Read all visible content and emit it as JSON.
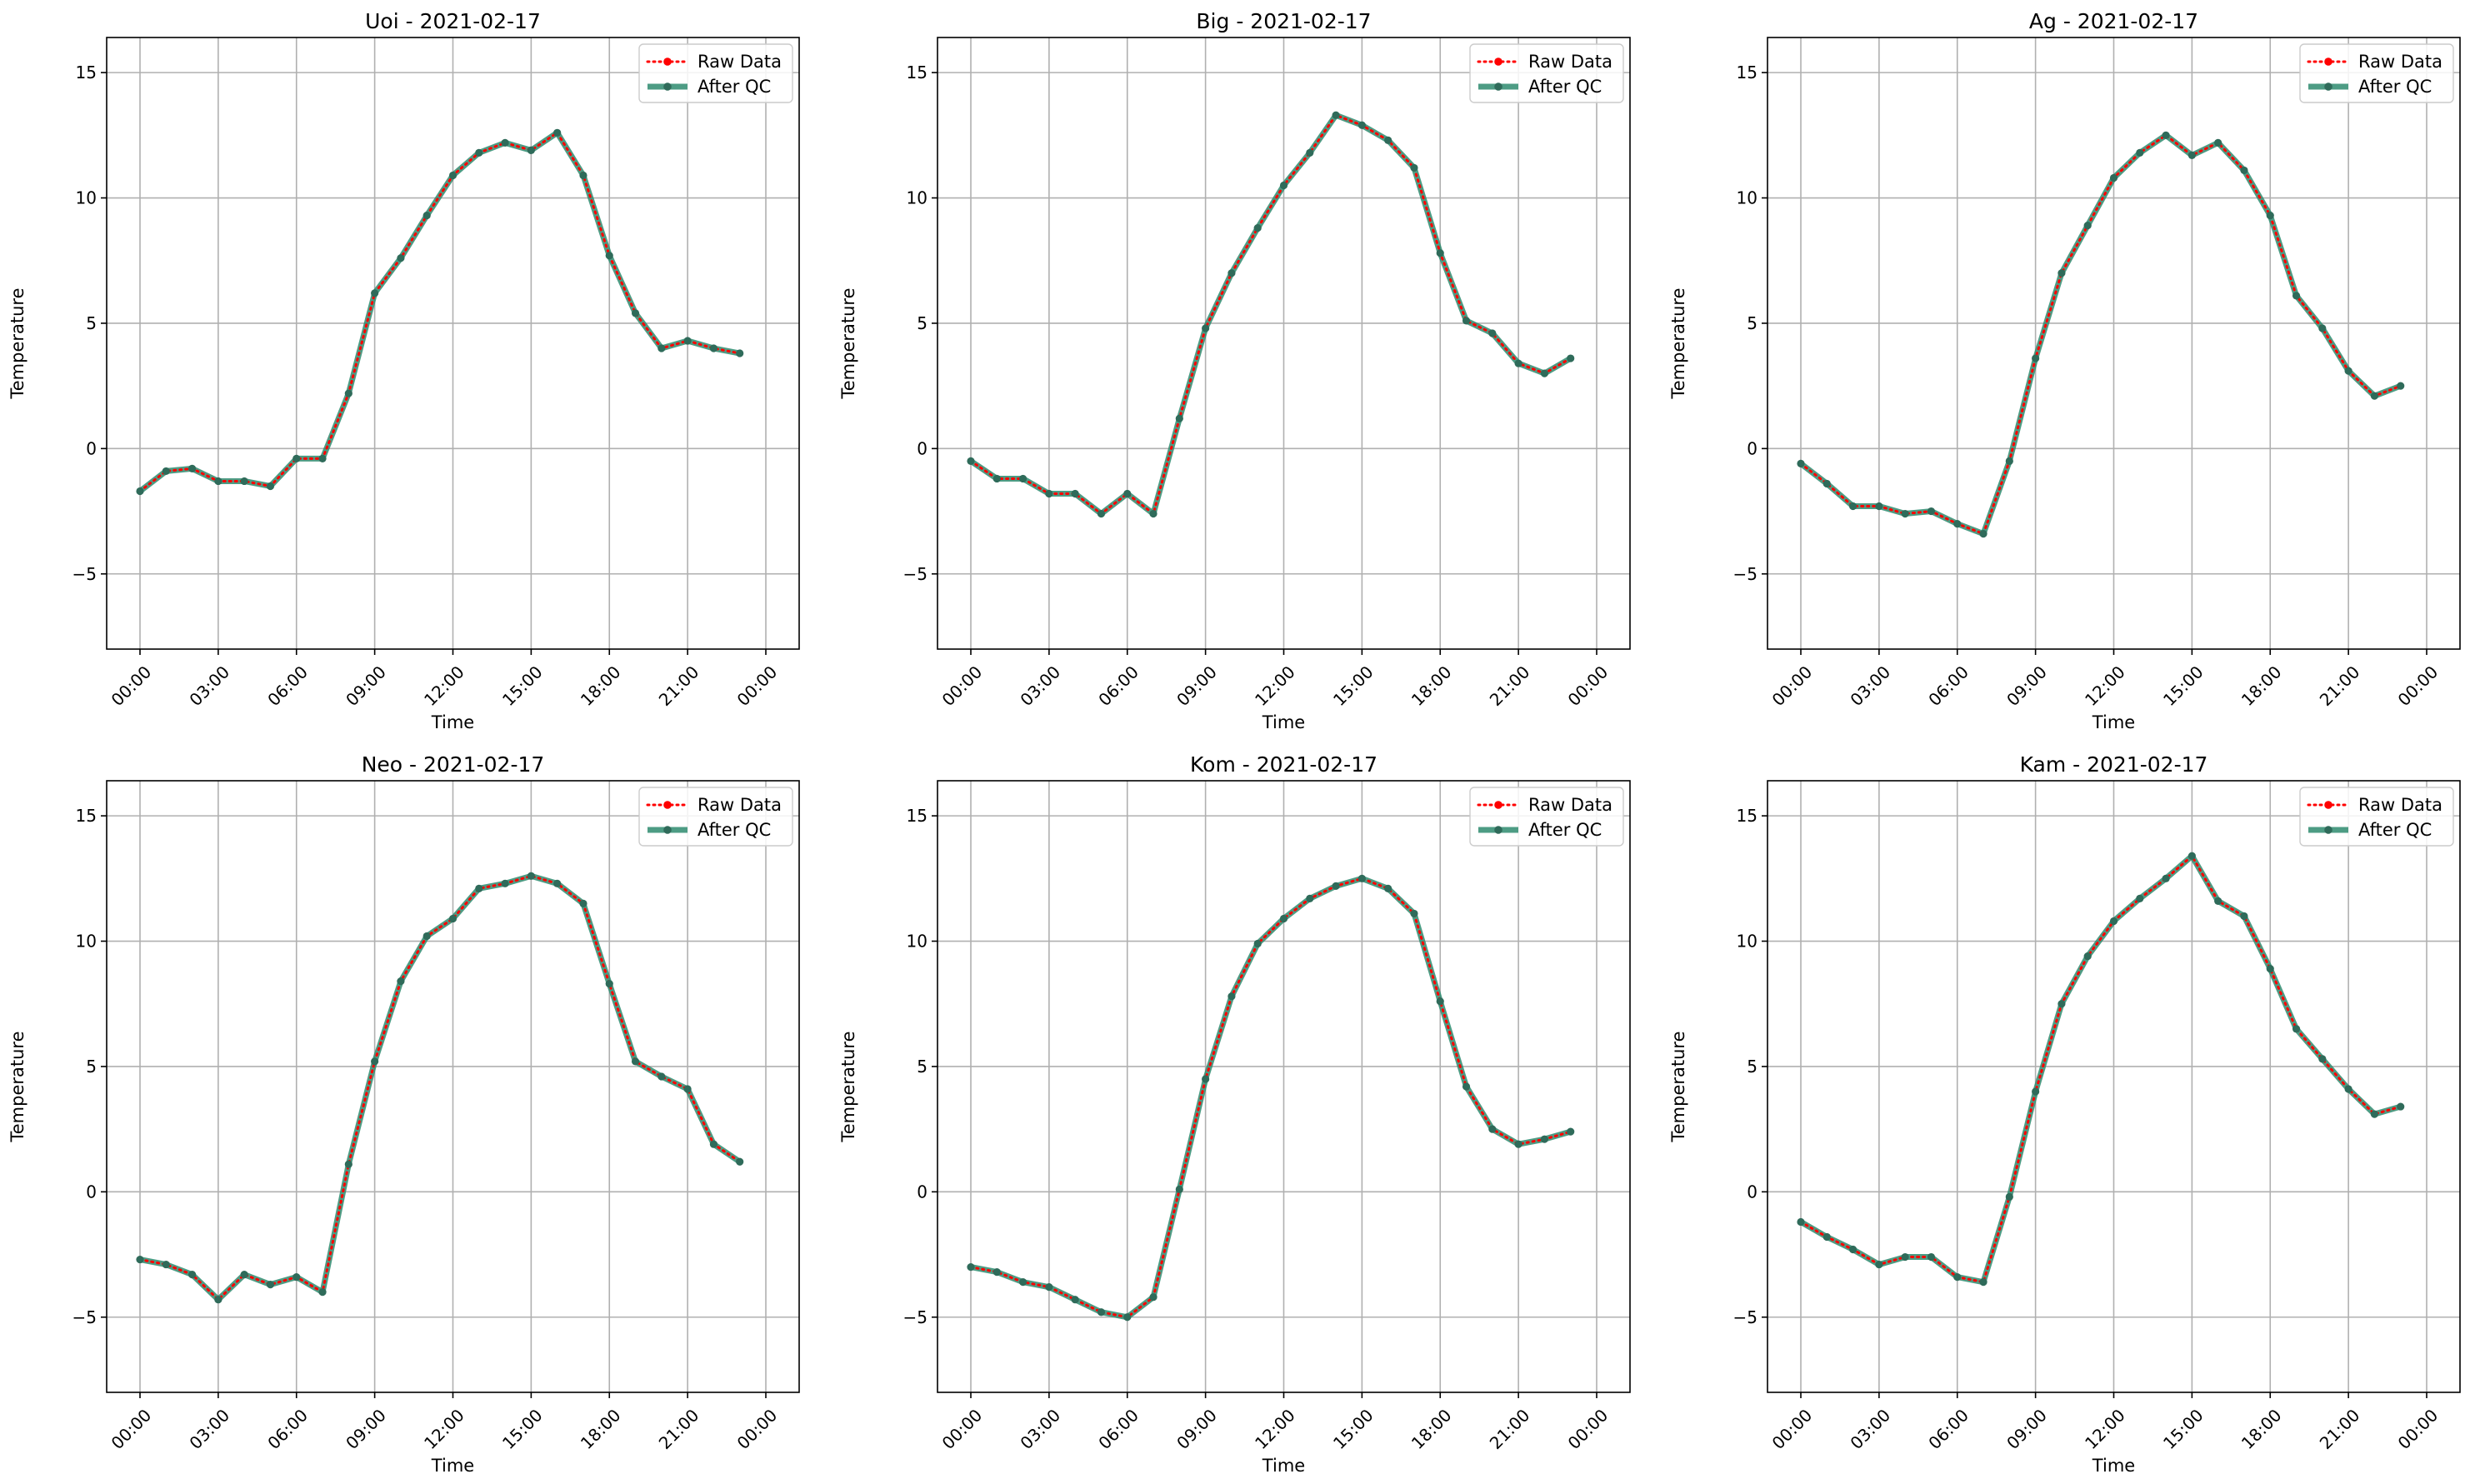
{
  "legend": {
    "raw": "Raw Data",
    "qc": "After QC"
  },
  "colors": {
    "raw": "#ff0000",
    "qc": "#2e8b6e",
    "marker": "#2f6b5a"
  },
  "chart_data": [
    {
      "type": "line",
      "title": "Uoi - 2021-02-17",
      "xlabel": "Time",
      "ylabel": "Temperature",
      "ylim": [
        -8,
        16.4
      ],
      "x": [
        "00:00",
        "01:00",
        "02:00",
        "03:00",
        "04:00",
        "05:00",
        "06:00",
        "07:00",
        "08:00",
        "09:00",
        "10:00",
        "11:00",
        "12:00",
        "13:00",
        "14:00",
        "15:00",
        "16:00",
        "17:00",
        "18:00",
        "19:00",
        "20:00",
        "21:00",
        "22:00",
        "23:00"
      ],
      "yticks": [
        -5,
        0,
        5,
        10,
        15
      ],
      "xticks": [
        "00:00",
        "03:00",
        "06:00",
        "09:00",
        "12:00",
        "15:00",
        "18:00",
        "21:00",
        "00:00"
      ],
      "grid": true,
      "legend_position": "top-right",
      "series": [
        {
          "name": "Raw Data",
          "values": [
            -1.7,
            -0.9,
            -0.8,
            -1.3,
            -1.3,
            -1.5,
            -0.4,
            -0.4,
            2.2,
            6.2,
            7.6,
            9.3,
            10.9,
            11.8,
            12.2,
            11.9,
            12.6,
            10.9,
            7.7,
            5.4,
            4.0,
            4.3,
            4.0,
            3.8
          ]
        },
        {
          "name": "After QC",
          "values": [
            -1.7,
            -0.9,
            -0.8,
            -1.3,
            -1.3,
            -1.5,
            -0.4,
            -0.4,
            2.2,
            6.2,
            7.6,
            9.3,
            10.9,
            11.8,
            12.2,
            11.9,
            12.6,
            10.9,
            7.7,
            5.4,
            4.0,
            4.3,
            4.0,
            3.8
          ]
        }
      ]
    },
    {
      "type": "line",
      "title": "Big - 2021-02-17",
      "xlabel": "Time",
      "ylabel": "Temperature",
      "ylim": [
        -8,
        16.4
      ],
      "x": [
        "00:00",
        "01:00",
        "02:00",
        "03:00",
        "04:00",
        "05:00",
        "06:00",
        "07:00",
        "08:00",
        "09:00",
        "10:00",
        "11:00",
        "12:00",
        "13:00",
        "14:00",
        "15:00",
        "16:00",
        "17:00",
        "18:00",
        "19:00",
        "20:00",
        "21:00",
        "22:00",
        "23:00"
      ],
      "yticks": [
        -5,
        0,
        5,
        10,
        15
      ],
      "xticks": [
        "00:00",
        "03:00",
        "06:00",
        "09:00",
        "12:00",
        "15:00",
        "18:00",
        "21:00",
        "00:00"
      ],
      "grid": true,
      "legend_position": "top-right",
      "series": [
        {
          "name": "Raw Data",
          "values": [
            -0.5,
            -1.2,
            -1.2,
            -1.8,
            -1.8,
            -2.6,
            -1.8,
            -2.6,
            1.2,
            4.8,
            7.0,
            8.8,
            10.5,
            11.8,
            13.3,
            12.9,
            12.3,
            11.2,
            7.8,
            5.1,
            4.6,
            3.4,
            3.0,
            3.6
          ]
        },
        {
          "name": "After QC",
          "values": [
            -0.5,
            -1.2,
            -1.2,
            -1.8,
            -1.8,
            -2.6,
            -1.8,
            -2.6,
            1.2,
            4.8,
            7.0,
            8.8,
            10.5,
            11.8,
            13.3,
            12.9,
            12.3,
            11.2,
            7.8,
            5.1,
            4.6,
            3.4,
            3.0,
            3.6
          ]
        }
      ]
    },
    {
      "type": "line",
      "title": "Ag - 2021-02-17",
      "xlabel": "Time",
      "ylabel": "Temperature",
      "ylim": [
        -8,
        16.4
      ],
      "x": [
        "00:00",
        "01:00",
        "02:00",
        "03:00",
        "04:00",
        "05:00",
        "06:00",
        "07:00",
        "08:00",
        "09:00",
        "10:00",
        "11:00",
        "12:00",
        "13:00",
        "14:00",
        "15:00",
        "16:00",
        "17:00",
        "18:00",
        "19:00",
        "20:00",
        "21:00",
        "22:00",
        "23:00"
      ],
      "yticks": [
        -5,
        0,
        5,
        10,
        15
      ],
      "xticks": [
        "00:00",
        "03:00",
        "06:00",
        "09:00",
        "12:00",
        "15:00",
        "18:00",
        "21:00",
        "00:00"
      ],
      "grid": true,
      "legend_position": "top-right",
      "series": [
        {
          "name": "Raw Data",
          "values": [
            -0.6,
            -1.4,
            -2.3,
            -2.3,
            -2.6,
            -2.5,
            -3.0,
            -3.4,
            -0.5,
            3.6,
            7.0,
            8.9,
            10.8,
            11.8,
            12.5,
            11.7,
            12.2,
            11.1,
            9.3,
            6.1,
            4.8,
            3.1,
            2.1,
            2.5
          ]
        },
        {
          "name": "After QC",
          "values": [
            -0.6,
            -1.4,
            -2.3,
            -2.3,
            -2.6,
            -2.5,
            -3.0,
            -3.4,
            -0.5,
            3.6,
            7.0,
            8.9,
            10.8,
            11.8,
            12.5,
            11.7,
            12.2,
            11.1,
            9.3,
            6.1,
            4.8,
            3.1,
            2.1,
            2.5
          ]
        }
      ]
    },
    {
      "type": "line",
      "title": "Neo - 2021-02-17",
      "xlabel": "Time",
      "ylabel": "Temperature",
      "ylim": [
        -8,
        16.4
      ],
      "x": [
        "00:00",
        "01:00",
        "02:00",
        "03:00",
        "04:00",
        "05:00",
        "06:00",
        "07:00",
        "08:00",
        "09:00",
        "10:00",
        "11:00",
        "12:00",
        "13:00",
        "14:00",
        "15:00",
        "16:00",
        "17:00",
        "18:00",
        "19:00",
        "20:00",
        "21:00",
        "22:00",
        "23:00"
      ],
      "yticks": [
        -5,
        0,
        5,
        10,
        15
      ],
      "xticks": [
        "00:00",
        "03:00",
        "06:00",
        "09:00",
        "12:00",
        "15:00",
        "18:00",
        "21:00",
        "00:00"
      ],
      "grid": true,
      "legend_position": "top-right",
      "series": [
        {
          "name": "Raw Data",
          "values": [
            -2.7,
            -2.9,
            -3.3,
            -4.3,
            -3.3,
            -3.7,
            -3.4,
            -4.0,
            1.1,
            5.2,
            8.4,
            10.2,
            10.9,
            12.1,
            12.3,
            12.6,
            12.3,
            11.5,
            8.3,
            5.2,
            4.6,
            4.1,
            1.9,
            1.2
          ]
        },
        {
          "name": "After QC",
          "values": [
            -2.7,
            -2.9,
            -3.3,
            -4.3,
            -3.3,
            -3.7,
            -3.4,
            -4.0,
            1.1,
            5.2,
            8.4,
            10.2,
            10.9,
            12.1,
            12.3,
            12.6,
            12.3,
            11.5,
            8.3,
            5.2,
            4.6,
            4.1,
            1.9,
            1.2
          ]
        }
      ]
    },
    {
      "type": "line",
      "title": "Kom - 2021-02-17",
      "xlabel": "Time",
      "ylabel": "Temperature",
      "ylim": [
        -8,
        16.4
      ],
      "x": [
        "00:00",
        "01:00",
        "02:00",
        "03:00",
        "04:00",
        "05:00",
        "06:00",
        "07:00",
        "08:00",
        "09:00",
        "10:00",
        "11:00",
        "12:00",
        "13:00",
        "14:00",
        "15:00",
        "16:00",
        "17:00",
        "18:00",
        "19:00",
        "20:00",
        "21:00",
        "22:00",
        "23:00"
      ],
      "yticks": [
        -5,
        0,
        5,
        10,
        15
      ],
      "xticks": [
        "00:00",
        "03:00",
        "06:00",
        "09:00",
        "12:00",
        "15:00",
        "18:00",
        "21:00",
        "00:00"
      ],
      "grid": true,
      "legend_position": "top-right",
      "series": [
        {
          "name": "Raw Data",
          "values": [
            -3.0,
            -3.2,
            -3.6,
            -3.8,
            -4.3,
            -4.8,
            -5.0,
            -4.2,
            0.1,
            4.5,
            7.8,
            9.9,
            10.9,
            11.7,
            12.2,
            12.5,
            12.1,
            11.1,
            7.6,
            4.2,
            2.5,
            1.9,
            2.1,
            2.4
          ]
        },
        {
          "name": "After QC",
          "values": [
            -3.0,
            -3.2,
            -3.6,
            -3.8,
            -4.3,
            -4.8,
            -5.0,
            -4.2,
            0.1,
            4.5,
            7.8,
            9.9,
            10.9,
            11.7,
            12.2,
            12.5,
            12.1,
            11.1,
            7.6,
            4.2,
            2.5,
            1.9,
            2.1,
            2.4
          ]
        }
      ]
    },
    {
      "type": "line",
      "title": "Kam - 2021-02-17",
      "xlabel": "Time",
      "ylabel": "Temperature",
      "ylim": [
        -8,
        16.4
      ],
      "x": [
        "00:00",
        "01:00",
        "02:00",
        "03:00",
        "04:00",
        "05:00",
        "06:00",
        "07:00",
        "08:00",
        "09:00",
        "10:00",
        "11:00",
        "12:00",
        "13:00",
        "14:00",
        "15:00",
        "16:00",
        "17:00",
        "18:00",
        "19:00",
        "20:00",
        "21:00",
        "22:00",
        "23:00"
      ],
      "yticks": [
        -5,
        0,
        5,
        10,
        15
      ],
      "xticks": [
        "00:00",
        "03:00",
        "06:00",
        "09:00",
        "12:00",
        "15:00",
        "18:00",
        "21:00",
        "00:00"
      ],
      "grid": true,
      "legend_position": "top-right",
      "series": [
        {
          "name": "Raw Data",
          "values": [
            -1.2,
            -1.8,
            -2.3,
            -2.9,
            -2.6,
            -2.6,
            -3.4,
            -3.6,
            -0.2,
            4.0,
            7.5,
            9.4,
            10.8,
            11.7,
            12.5,
            13.4,
            11.6,
            11.0,
            8.9,
            6.5,
            5.3,
            4.1,
            3.1,
            3.4
          ]
        },
        {
          "name": "After QC",
          "values": [
            -1.2,
            -1.8,
            -2.3,
            -2.9,
            -2.6,
            -2.6,
            -3.4,
            -3.6,
            -0.2,
            4.0,
            7.5,
            9.4,
            10.8,
            11.7,
            12.5,
            13.4,
            11.6,
            11.0,
            8.9,
            6.5,
            5.3,
            4.1,
            3.1,
            3.4
          ]
        }
      ]
    }
  ]
}
